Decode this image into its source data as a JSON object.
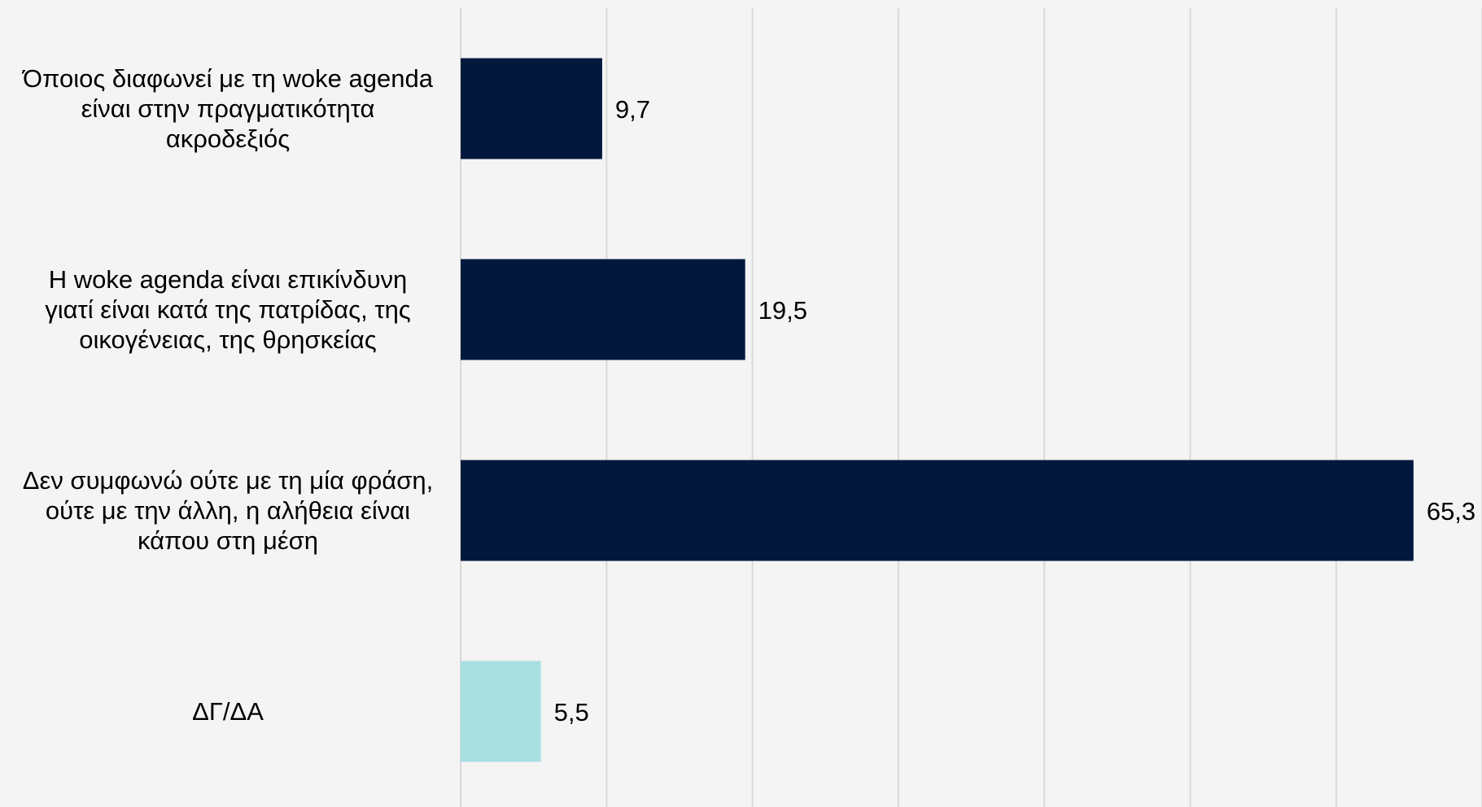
{
  "chart_data": {
    "type": "bar",
    "orientation": "horizontal",
    "categories": [
      [
        "Όποιος διαφωνεί με τη woke agenda",
        "είναι στην πραγματικότητα",
        "ακροδεξιός"
      ],
      [
        "Η woke agenda είναι επικίνδυνη",
        "γιατί είναι κατά της πατρίδας, της",
        "οικογένειας, της θρησκείας"
      ],
      [
        "Δεν συμφωνώ ούτε με τη μία φράση,",
        "ούτε με την άλλη, η αλήθεια είναι",
        "κάπου στη μέση"
      ],
      [
        "ΔΓ/ΔΑ"
      ]
    ],
    "values": [
      9.7,
      19.5,
      65.3,
      5.5
    ],
    "value_labels": [
      "9,7",
      "19,5",
      "65,3",
      "5,5"
    ],
    "bar_colors": [
      "#02193d",
      "#02193d",
      "#02193d",
      "#a8e0e2"
    ],
    "xlim": [
      0,
      70
    ],
    "x_gridlines": [
      0,
      10,
      20,
      30,
      40,
      50,
      60,
      70
    ],
    "grid": true,
    "legend": "none",
    "title": "",
    "xlabel": "",
    "ylabel": ""
  }
}
